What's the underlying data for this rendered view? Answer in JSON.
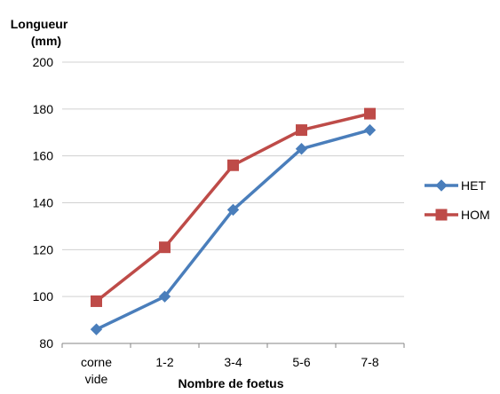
{
  "chart_data": {
    "type": "line",
    "ylabel": [
      "Longueur",
      "(mm)"
    ],
    "xlabel": "Nombre de foetus",
    "categories": [
      [
        "corne",
        "vide"
      ],
      [
        "1-2"
      ],
      [
        "3-4"
      ],
      [
        "5-6"
      ],
      [
        "7-8"
      ]
    ],
    "ylim": [
      80,
      200
    ],
    "yticks": [
      "80",
      "100",
      "120",
      "140",
      "160",
      "180",
      "200"
    ],
    "grid": true,
    "legend_position": "right",
    "series": [
      {
        "name": "HET",
        "color": "#4a7ebb",
        "marker": "diamond",
        "values": [
          86,
          100,
          137,
          163,
          171
        ]
      },
      {
        "name": "HOM",
        "color": "#be4b48",
        "marker": "square",
        "values": [
          98,
          121,
          156,
          171,
          178
        ]
      }
    ]
  }
}
